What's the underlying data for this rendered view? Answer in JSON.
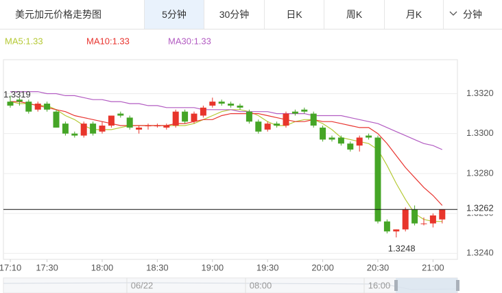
{
  "header": {
    "title": "美元加元价格走势图",
    "tabs": [
      "5分钟",
      "30分钟",
      "日K",
      "周K",
      "月K"
    ],
    "dropdown": "分钟"
  },
  "chart_data": {
    "type": "candlestick",
    "categories": [
      "17:10",
      null,
      null,
      null,
      "17:30",
      null,
      null,
      null,
      null,
      null,
      "18:00",
      null,
      null,
      null,
      null,
      null,
      "18:30",
      null,
      null,
      null,
      null,
      null,
      "19:00",
      null,
      null,
      null,
      null,
      null,
      "19:30",
      null,
      null,
      null,
      null,
      null,
      "20:00",
      null,
      null,
      null,
      null,
      null,
      "20:30",
      null,
      null,
      null,
      null,
      null,
      "21:00",
      null
    ],
    "open": [
      1.3316,
      1.3317,
      1.3316,
      1.3312,
      1.3315,
      1.3311,
      1.3305,
      1.33,
      1.3299,
      1.3305,
      1.3301,
      1.3304,
      1.331,
      1.3308,
      1.3302,
      1.3304,
      1.3304,
      1.3303,
      1.3304,
      1.3311,
      1.3306,
      1.3309,
      1.3314,
      1.3316,
      1.3315,
      1.3314,
      1.3311,
      1.3306,
      1.3302,
      1.3305,
      1.3304,
      1.3311,
      1.3312,
      1.331,
      1.3303,
      1.3298,
      1.3298,
      1.3295,
      1.3294,
      1.3299,
      1.3298,
      1.3256,
      1.3251,
      1.3252,
      1.3262,
      1.3255,
      1.3255,
      1.3257
    ],
    "high": [
      1.3319,
      1.3318,
      1.3317,
      1.3316,
      1.3316,
      1.3312,
      1.3306,
      1.3301,
      1.3306,
      1.3306,
      1.3306,
      1.3309,
      1.3311,
      1.3309,
      1.3304,
      1.3305,
      1.3305,
      1.3305,
      1.3312,
      1.3312,
      1.3311,
      1.3314,
      1.3318,
      1.3317,
      1.3316,
      1.3315,
      1.3312,
      1.3307,
      1.3306,
      1.3306,
      1.3311,
      1.3312,
      1.3313,
      1.3311,
      1.3304,
      1.3299,
      1.3299,
      1.3296,
      1.3299,
      1.33,
      1.3299,
      1.3257,
      1.3252,
      1.3263,
      1.3264,
      1.3258,
      1.326,
      1.3262
    ],
    "low": [
      1.3313,
      1.3314,
      1.331,
      1.3311,
      1.3311,
      1.3303,
      1.3299,
      1.3298,
      1.3298,
      1.3299,
      1.33,
      1.3303,
      1.3308,
      1.3302,
      1.33,
      1.3302,
      1.3303,
      1.3302,
      1.3303,
      1.3305,
      1.3305,
      1.3308,
      1.3313,
      1.3314,
      1.3313,
      1.3312,
      1.3305,
      1.33,
      1.3301,
      1.3303,
      1.3303,
      1.3309,
      1.331,
      1.3303,
      1.3296,
      1.3296,
      1.3294,
      1.3291,
      1.3291,
      1.3297,
      1.3255,
      1.325,
      1.3248,
      1.3251,
      1.3254,
      1.3254,
      1.3253,
      1.3255
    ],
    "close": [
      1.3314,
      1.3316,
      1.3311,
      1.3315,
      1.3312,
      1.3303,
      1.33,
      1.3299,
      1.3305,
      1.33,
      1.3304,
      1.3309,
      1.3309,
      1.3303,
      1.3303,
      1.3304,
      1.3304,
      1.3304,
      1.3311,
      1.3306,
      1.331,
      1.3313,
      1.3316,
      1.3315,
      1.3314,
      1.3313,
      1.3306,
      1.3301,
      1.3305,
      1.3304,
      1.331,
      1.331,
      1.3311,
      1.3304,
      1.3297,
      1.3297,
      1.3295,
      1.3292,
      1.3298,
      1.3298,
      1.3256,
      1.3251,
      1.3252,
      1.3262,
      1.3255,
      1.3255,
      1.3259,
      1.3262
    ],
    "up_color": "#e8352b",
    "down_color": "#45a526",
    "series": [
      {
        "name": "MA5:1.33",
        "color": "#b5c934",
        "values": [
          1.3316,
          1.3315,
          1.3315,
          1.3314,
          1.3314,
          1.3312,
          1.3309,
          1.3307,
          1.3304,
          1.3302,
          1.3302,
          1.3302,
          1.3303,
          1.3304,
          1.3304,
          1.3304,
          1.3304,
          1.3304,
          1.3304,
          1.3304,
          1.3305,
          1.3307,
          1.3309,
          1.3311,
          1.3312,
          1.3312,
          1.3311,
          1.3309,
          1.3306,
          1.3304,
          1.3304,
          1.3306,
          1.3307,
          1.3307,
          1.3305,
          1.3302,
          1.3298,
          1.3297,
          1.3296,
          1.3295,
          1.3292,
          1.3284,
          1.3275,
          1.3267,
          1.326,
          1.3257,
          1.3256,
          1.3256
        ]
      },
      {
        "name": "MA10:1.33",
        "color": "#e8332e",
        "values": [
          1.3316,
          1.3316,
          1.3315,
          1.3314,
          1.3313,
          1.3312,
          1.3311,
          1.3309,
          1.3308,
          1.3307,
          1.3306,
          1.3305,
          1.3304,
          1.3304,
          1.3304,
          1.3304,
          1.3304,
          1.3304,
          1.3305,
          1.3305,
          1.3306,
          1.3307,
          1.3307,
          1.3309,
          1.331,
          1.331,
          1.331,
          1.331,
          1.3309,
          1.3308,
          1.3307,
          1.3306,
          1.3306,
          1.3307,
          1.3306,
          1.3306,
          1.3305,
          1.3304,
          1.3303,
          1.3303,
          1.33,
          1.3295,
          1.3289,
          1.3283,
          1.3278,
          1.3273,
          1.3269,
          1.3264
        ]
      },
      {
        "name": "MA30:1.33",
        "color": "#b25bc2",
        "values": [
          1.3321,
          1.3321,
          1.3321,
          1.3321,
          1.332,
          1.332,
          1.3319,
          1.3319,
          1.3318,
          1.3317,
          1.3317,
          1.3316,
          1.3316,
          1.3315,
          1.3315,
          1.3314,
          1.3314,
          1.3313,
          1.3313,
          1.3313,
          1.3313,
          1.3312,
          1.3312,
          1.3312,
          1.3312,
          1.3311,
          1.3311,
          1.3311,
          1.3311,
          1.331,
          1.331,
          1.331,
          1.331,
          1.3309,
          1.3309,
          1.3309,
          1.3309,
          1.3308,
          1.3307,
          1.3306,
          1.3305,
          1.3303,
          1.3301,
          1.3299,
          1.3297,
          1.3295,
          1.3294,
          1.3292
        ]
      }
    ],
    "ylim": [
      1.3237,
      1.3337
    ],
    "yticks": [
      {
        "value": 1.324,
        "label": "1.3240"
      },
      {
        "value": 1.326,
        "label": "1.3260"
      },
      {
        "value": 1.328,
        "label": "1.3280"
      },
      {
        "value": 1.33,
        "label": "1.3300"
      },
      {
        "value": 1.332,
        "label": "1.3320"
      }
    ],
    "grid": true
  },
  "navigator": {
    "labels": [
      "06/22",
      "08:00",
      "16:00"
    ]
  }
}
